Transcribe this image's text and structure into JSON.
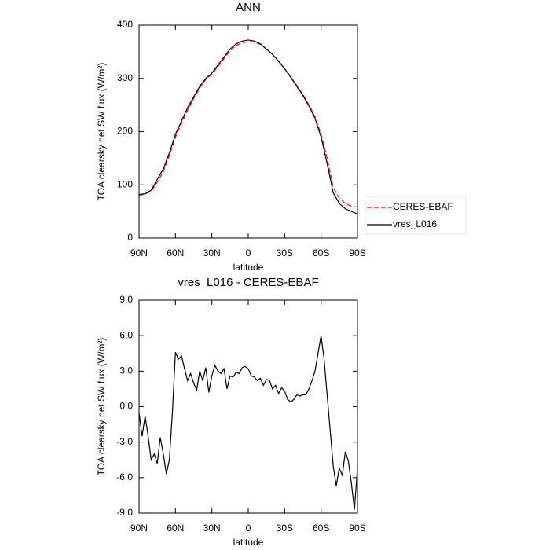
{
  "chart_data": [
    {
      "type": "line",
      "title": "ANN",
      "xlabel": "latitude",
      "ylabel": "TOA clearsky net SW flux (W/m²)",
      "x": [
        90,
        85,
        80,
        75,
        70,
        65,
        60,
        55,
        50,
        45,
        40,
        35,
        30,
        25,
        20,
        15,
        10,
        5,
        0,
        -5,
        -10,
        -15,
        -20,
        -25,
        -30,
        -35,
        -40,
        -45,
        -50,
        -55,
        -60,
        -65,
        -70,
        -75,
        -80,
        -85,
        -90
      ],
      "series": [
        {
          "name": "CERES-EBAF",
          "color": "#ff0000",
          "linestyle": "dashed",
          "values": [
            80,
            83,
            88,
            105,
            125,
            155,
            190,
            215,
            240,
            262,
            282,
            298,
            308,
            322,
            337,
            352,
            362,
            367,
            369,
            368,
            364,
            355,
            345,
            333,
            318,
            303,
            287,
            270,
            250,
            228,
            195,
            150,
            95,
            75,
            65,
            60,
            58
          ]
        },
        {
          "name": "vres_L016",
          "color": "#000000",
          "linestyle": "solid",
          "values": [
            82,
            83,
            90,
            110,
            130,
            160,
            195,
            220,
            245,
            265,
            285,
            300,
            310,
            325,
            340,
            355,
            365,
            370,
            372,
            370,
            365,
            355,
            345,
            332,
            318,
            302,
            285,
            268,
            248,
            225,
            190,
            140,
            85,
            65,
            55,
            50,
            45
          ]
        }
      ],
      "xlim": [
        90,
        -90
      ],
      "xticks": [
        {
          "value": 90,
          "label": "90N"
        },
        {
          "value": 60,
          "label": "60N"
        },
        {
          "value": 30,
          "label": "30N"
        },
        0,
        {
          "value": -30,
          "label": "30S"
        },
        {
          "value": -60,
          "label": "60S"
        },
        {
          "value": -90,
          "label": "90S"
        }
      ],
      "ylim": [
        0,
        400
      ],
      "yticks": [
        0,
        100,
        200,
        300,
        400
      ],
      "legend": "right"
    },
    {
      "type": "line",
      "title": "vres_L016 - CERES-EBAF",
      "xlabel": "latitude",
      "ylabel": "TOA clearsky net SW flux (W/m²)",
      "x": [
        90,
        87.5,
        85,
        82.5,
        80,
        77.5,
        75,
        72.5,
        70,
        67.5,
        65,
        62.5,
        60,
        57.5,
        55,
        52.5,
        50,
        47.5,
        45,
        42.5,
        40,
        37.5,
        35,
        32.5,
        30,
        27.5,
        25,
        22.5,
        20,
        17.5,
        15,
        12.5,
        10,
        7.5,
        5,
        2.5,
        0,
        -2.5,
        -5,
        -7.5,
        -10,
        -12.5,
        -15,
        -17.5,
        -20,
        -22.5,
        -25,
        -27.5,
        -30,
        -32.5,
        -35,
        -37.5,
        -40,
        -42.5,
        -45,
        -47.5,
        -50,
        -52.5,
        -55,
        -57.5,
        -60,
        -62.5,
        -65,
        -67.5,
        -70,
        -72.5,
        -75,
        -77.5,
        -80,
        -82.5,
        -85,
        -87.5,
        -90
      ],
      "series": [
        {
          "color": "#000000",
          "linestyle": "solid",
          "values": [
            -0.5,
            -2.5,
            -0.8,
            -2.5,
            -4.5,
            -4.0,
            -4.8,
            -2.6,
            -4.0,
            -5.7,
            -4.5,
            -0.5,
            4.6,
            4.0,
            4.3,
            3.2,
            2.2,
            2.8,
            2.0,
            1.4,
            3.0,
            2.2,
            3.3,
            1.2,
            2.6,
            3.5,
            3.0,
            2.8,
            3.2,
            1.5,
            2.6,
            2.5,
            2.9,
            2.8,
            3.3,
            3.4,
            3.2,
            2.6,
            2.5,
            2.2,
            2.4,
            1.8,
            2.3,
            2.2,
            1.5,
            1.8,
            1.1,
            1.6,
            1.3,
            0.6,
            0.4,
            0.6,
            1.0,
            0.9,
            1.0,
            1.0,
            1.5,
            2.2,
            3.0,
            4.5,
            6.0,
            4.0,
            1.0,
            -2.0,
            -5.0,
            -6.7,
            -5.2,
            -5.8,
            -3.8,
            -4.6,
            -6.5,
            -8.7,
            -5.2
          ]
        }
      ],
      "xlim": [
        90,
        -90
      ],
      "xticks": [
        {
          "value": 90,
          "label": "90N"
        },
        {
          "value": 60,
          "label": "60N"
        },
        {
          "value": 30,
          "label": "30N"
        },
        0,
        {
          "value": -30,
          "label": "30S"
        },
        {
          "value": -60,
          "label": "60S"
        },
        {
          "value": -90,
          "label": "90S"
        }
      ],
      "ylim": [
        -9,
        9
      ],
      "yticks": [
        {
          "value": -9,
          "label": "-9.0"
        },
        {
          "value": -6,
          "label": "-6.0"
        },
        {
          "value": -3,
          "label": "-3.0"
        },
        {
          "value": 0,
          "label": "0.0"
        },
        {
          "value": 3,
          "label": "3.0"
        },
        {
          "value": 6,
          "label": "6.0"
        },
        {
          "value": 9,
          "label": "9.0"
        }
      ]
    }
  ]
}
